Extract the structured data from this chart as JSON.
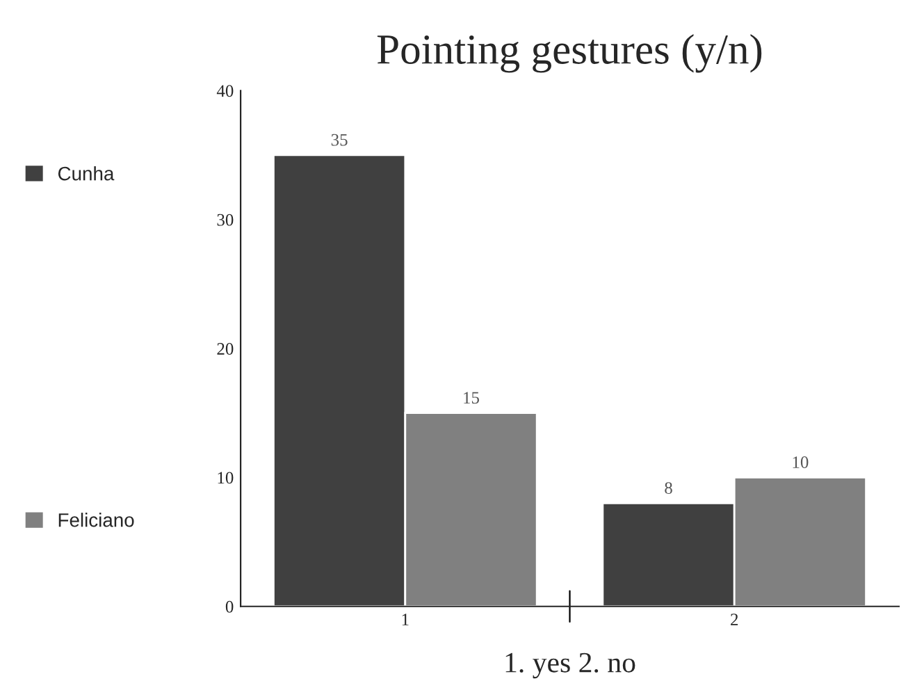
{
  "chart_data": {
    "type": "bar",
    "title": "Pointing gestures (y/n)",
    "xlabel": "1. yes 2. no",
    "categories": [
      "1",
      "2"
    ],
    "series": [
      {
        "name": "Cunha",
        "color": "#404040",
        "values": [
          35,
          8
        ]
      },
      {
        "name": "Feliciano",
        "color": "#808080",
        "values": [
          15,
          10
        ]
      }
    ],
    "ylim": [
      0,
      40
    ],
    "yticks": [
      0,
      10,
      20,
      30,
      40
    ],
    "data_labels": true,
    "legend": "left",
    "grid": false
  }
}
